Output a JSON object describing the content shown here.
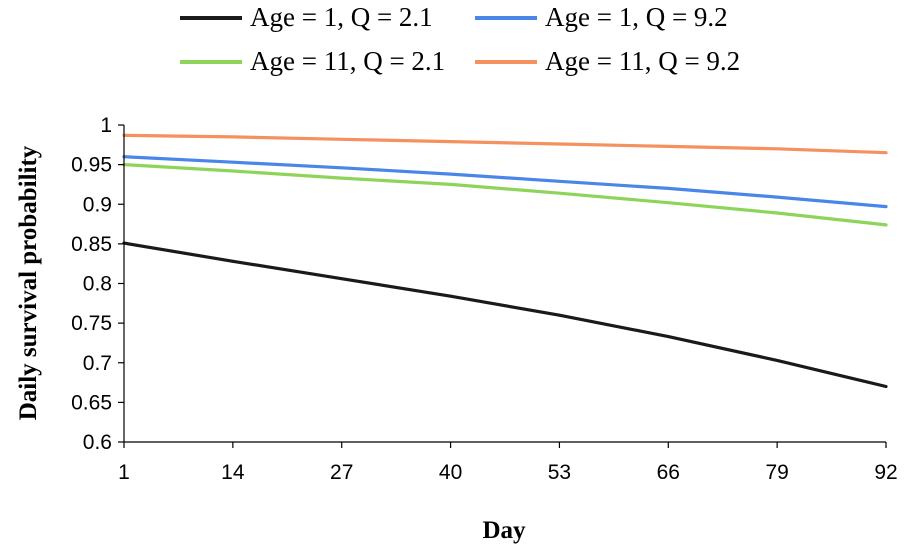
{
  "chart_data": {
    "type": "line",
    "xlabel": "Day",
    "ylabel": "Daily survival probability",
    "xlim": [
      1,
      92
    ],
    "ylim": [
      0.6,
      1.0
    ],
    "x_ticks": [
      "1",
      "14",
      "27",
      "40",
      "53",
      "66",
      "79",
      "92"
    ],
    "y_ticks": [
      "1",
      "0.95",
      "0.9",
      "0.85",
      "0.8",
      "0.75",
      "0.7",
      "0.65",
      "0.6"
    ],
    "grid": false,
    "legend_position": "top",
    "x": [
      1,
      14,
      27,
      40,
      53,
      66,
      79,
      92
    ],
    "series": [
      {
        "name": "Age = 1, Q = 2.1",
        "color": "#1a1a1a",
        "values": [
          0.851,
          0.828,
          0.806,
          0.784,
          0.76,
          0.733,
          0.703,
          0.67
        ]
      },
      {
        "name": "Age = 1, Q = 9.2",
        "color": "#4a86e8",
        "values": [
          0.96,
          0.953,
          0.946,
          0.938,
          0.929,
          0.92,
          0.909,
          0.897
        ]
      },
      {
        "name": "Age = 11, Q = 2.1",
        "color": "#8fd45a",
        "values": [
          0.95,
          0.942,
          0.933,
          0.925,
          0.914,
          0.902,
          0.889,
          0.874
        ]
      },
      {
        "name": "Age = 11, Q = 9.2",
        "color": "#f5905f",
        "values": [
          0.987,
          0.985,
          0.982,
          0.979,
          0.976,
          0.973,
          0.97,
          0.965
        ]
      }
    ]
  }
}
